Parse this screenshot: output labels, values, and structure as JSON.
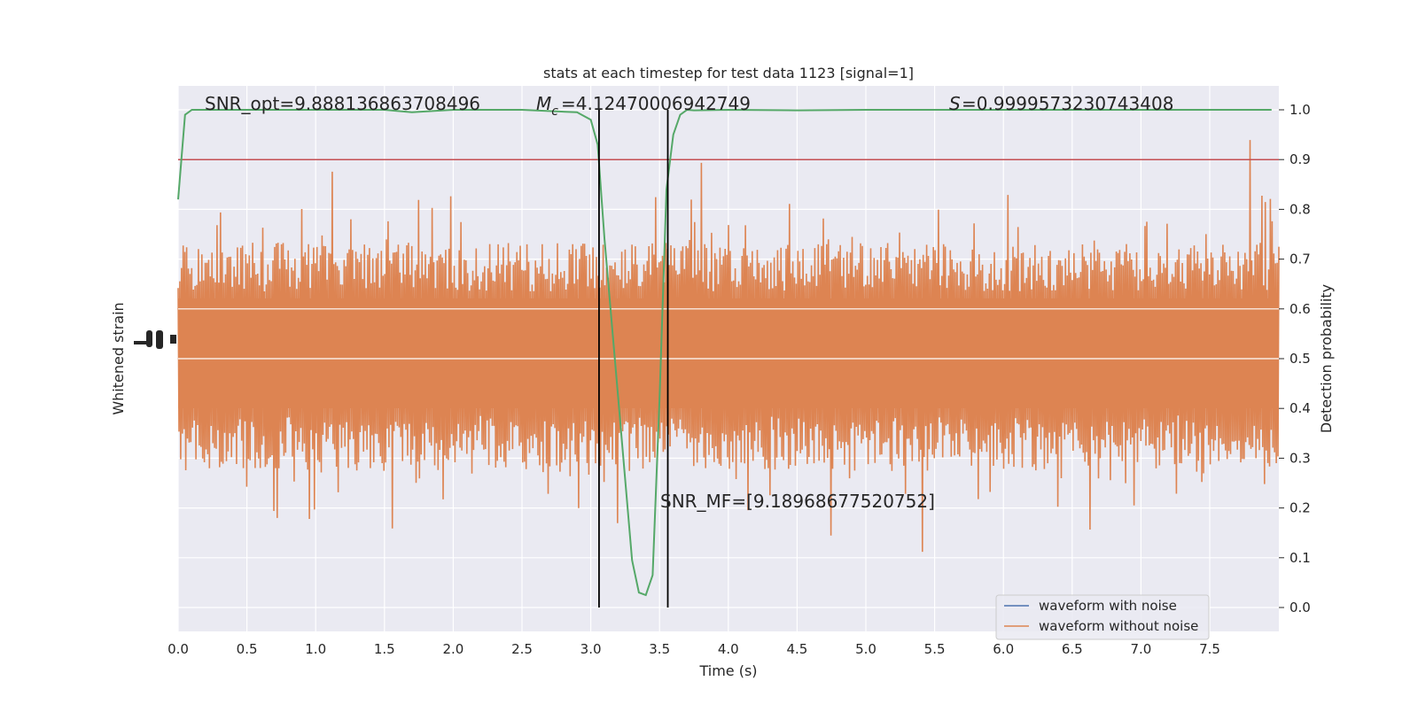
{
  "chart_data": {
    "type": "line",
    "title": "stats at each timestep for test data 1123 [signal=1]",
    "xlabel": "Time (s)",
    "ylabel_left": "Whitened strain",
    "ylabel_right": "Detection probability",
    "xlim": [
      0.0,
      8.0
    ],
    "ylim_right": [
      -0.05,
      1.05
    ],
    "x_ticks": [
      "0.0",
      "0.5",
      "1.0",
      "1.5",
      "2.0",
      "2.5",
      "3.0",
      "3.5",
      "4.0",
      "4.5",
      "5.0",
      "5.5",
      "6.0",
      "6.5",
      "7.0",
      "7.5"
    ],
    "y_ticks_right": [
      "0.0",
      "0.1",
      "0.2",
      "0.3",
      "0.4",
      "0.5",
      "0.6",
      "0.7",
      "0.8",
      "0.9",
      "1.0"
    ],
    "grid": true,
    "legend_position": "lower-right",
    "annotations": {
      "snr_opt": "SNR_opt=9.888136863708496",
      "mc": "=4.12470006942749",
      "s": "=0.9999573230743408",
      "snr_mf": "SNR_MF=[9.18968677520752]"
    },
    "threshold": 0.9,
    "vlines_x": [
      3.06,
      3.56
    ],
    "colors": {
      "noise_with": "#4c72b0",
      "noise_without": "#dd8452",
      "probability": "#55a868",
      "threshold": "#c44e52",
      "vline": "#000000",
      "background": "#eaeaf2"
    },
    "series": [
      {
        "name": "waveform with noise",
        "color": "#4c72b0"
      },
      {
        "name": "waveform without noise",
        "color": "#dd8452"
      },
      {
        "color": "#55a868",
        "x": [
          0.0,
          0.05,
          0.1,
          0.2,
          0.5,
          1.0,
          1.5,
          1.7,
          2.0,
          2.5,
          2.9,
          3.0,
          3.05,
          3.1,
          3.2,
          3.3,
          3.35,
          3.4,
          3.45,
          3.5,
          3.55,
          3.6,
          3.65,
          3.7,
          3.75,
          4.0,
          4.5,
          5.0,
          6.0,
          7.0,
          7.95
        ],
        "values": [
          0.82,
          0.99,
          1.0,
          1.0,
          1.0,
          1.0,
          1.0,
          0.995,
          1.0,
          1.0,
          0.995,
          0.98,
          0.93,
          0.74,
          0.42,
          0.095,
          0.03,
          0.025,
          0.065,
          0.42,
          0.84,
          0.95,
          0.99,
          1.0,
          0.999,
          1.0,
          0.999,
          1.0,
          1.0,
          1.0,
          1.0
        ]
      }
    ]
  }
}
